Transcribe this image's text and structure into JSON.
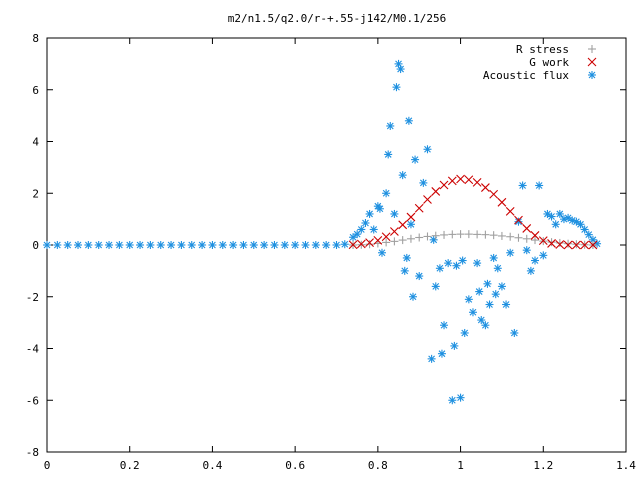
{
  "chart_data": {
    "type": "scatter",
    "title": "m2/n1.5/q2.0/r-+.55-j142/M0.1/256",
    "xlim": [
      0,
      1.4
    ],
    "ylim": [
      -8,
      8
    ],
    "x_ticks": [
      0,
      0.2,
      0.4,
      0.6,
      0.8,
      1,
      1.2,
      1.4
    ],
    "y_ticks": [
      -8,
      -6,
      -4,
      -2,
      0,
      2,
      4,
      6,
      8
    ],
    "x_tick_labels": [
      "0",
      "0.2",
      "0.4",
      "0.6",
      "0.8",
      "1",
      "1.2",
      "1.4"
    ],
    "y_tick_labels": [
      "-8",
      "-6",
      "-4",
      "-2",
      "0",
      "2",
      "4",
      "6",
      "8"
    ],
    "grid": false,
    "legend_position": "top-right",
    "series": [
      {
        "name": "R stress",
        "marker": "plus",
        "color": "#a0a0a0",
        "x": [
          0.74,
          0.76,
          0.78,
          0.8,
          0.82,
          0.84,
          0.86,
          0.88,
          0.9,
          0.92,
          0.94,
          0.96,
          0.98,
          1.0,
          1.02,
          1.04,
          1.06,
          1.08,
          1.1,
          1.12,
          1.14,
          1.16,
          1.18,
          1.2,
          1.22,
          1.24,
          1.26,
          1.28,
          1.3,
          1.32
        ],
        "y": [
          0.0,
          0.01,
          0.03,
          0.06,
          0.1,
          0.14,
          0.19,
          0.24,
          0.29,
          0.33,
          0.36,
          0.39,
          0.41,
          0.42,
          0.42,
          0.41,
          0.4,
          0.38,
          0.35,
          0.32,
          0.28,
          0.24,
          0.19,
          0.15,
          0.11,
          0.08,
          0.05,
          0.03,
          0.01,
          0.0
        ]
      },
      {
        "name": "G work",
        "marker": "cross",
        "color": "#cc0000",
        "x": [
          0.74,
          0.76,
          0.78,
          0.8,
          0.82,
          0.84,
          0.86,
          0.88,
          0.9,
          0.92,
          0.94,
          0.96,
          0.98,
          1.0,
          1.02,
          1.04,
          1.06,
          1.08,
          1.1,
          1.12,
          1.14,
          1.16,
          1.18,
          1.2,
          1.22,
          1.24,
          1.26,
          1.28,
          1.3,
          1.32
        ],
        "y": [
          0.01,
          0.04,
          0.09,
          0.18,
          0.32,
          0.52,
          0.78,
          1.08,
          1.42,
          1.76,
          2.07,
          2.32,
          2.48,
          2.55,
          2.52,
          2.42,
          2.22,
          1.96,
          1.65,
          1.3,
          0.96,
          0.64,
          0.37,
          0.17,
          0.06,
          0.02,
          0.0,
          0.0,
          0.0,
          0.0
        ]
      },
      {
        "name": "Acoustic flux",
        "marker": "star",
        "color": "#1e90e0",
        "x": [
          0.0,
          0.025,
          0.05,
          0.075,
          0.1,
          0.125,
          0.15,
          0.175,
          0.2,
          0.225,
          0.25,
          0.275,
          0.3,
          0.325,
          0.35,
          0.375,
          0.4,
          0.425,
          0.45,
          0.475,
          0.5,
          0.525,
          0.55,
          0.575,
          0.6,
          0.625,
          0.65,
          0.675,
          0.7,
          0.72,
          0.74,
          0.75,
          0.76,
          0.77,
          0.78,
          0.79,
          0.8,
          0.805,
          0.81,
          0.82,
          0.825,
          0.83,
          0.84,
          0.845,
          0.85,
          0.855,
          0.86,
          0.865,
          0.87,
          0.875,
          0.88,
          0.885,
          0.89,
          0.9,
          0.91,
          0.92,
          0.93,
          0.935,
          0.94,
          0.95,
          0.955,
          0.96,
          0.97,
          0.98,
          0.985,
          0.99,
          1.0,
          1.005,
          1.01,
          1.02,
          1.03,
          1.04,
          1.045,
          1.05,
          1.06,
          1.065,
          1.07,
          1.08,
          1.085,
          1.09,
          1.1,
          1.11,
          1.12,
          1.13,
          1.14,
          1.15,
          1.16,
          1.17,
          1.18,
          1.19,
          1.2,
          1.21,
          1.22,
          1.23,
          1.24,
          1.25,
          1.26,
          1.27,
          1.28,
          1.29,
          1.3,
          1.31,
          1.32,
          1.33
        ],
        "y": [
          0,
          0,
          0,
          0,
          0,
          0,
          0,
          0,
          0,
          0,
          0,
          0,
          0,
          0,
          0,
          0,
          0,
          0,
          0,
          0,
          0,
          0,
          0,
          0,
          0,
          0,
          0,
          0,
          0,
          0.03,
          0.3,
          0.42,
          0.6,
          0.85,
          1.2,
          0.6,
          1.5,
          1.4,
          -0.3,
          2.0,
          3.5,
          4.6,
          1.2,
          6.1,
          7.0,
          6.8,
          2.7,
          -1.0,
          -0.5,
          4.8,
          0.8,
          -2.0,
          3.3,
          -1.2,
          2.4,
          3.7,
          -4.4,
          0.2,
          -1.6,
          -0.9,
          -4.2,
          -3.1,
          -0.7,
          -6.0,
          -3.9,
          -0.8,
          -5.9,
          -0.6,
          -3.4,
          -2.1,
          -2.6,
          -0.7,
          -1.8,
          -2.9,
          -3.1,
          -1.5,
          -2.3,
          -0.5,
          -1.9,
          -0.9,
          -1.6,
          -2.3,
          -0.3,
          -3.4,
          0.9,
          2.3,
          -0.2,
          -1.0,
          -0.6,
          2.3,
          -0.4,
          1.2,
          1.1,
          0.8,
          1.2,
          1.0,
          1.05,
          0.95,
          0.9,
          0.8,
          0.6,
          0.4,
          0.2,
          0.05
        ]
      }
    ]
  }
}
